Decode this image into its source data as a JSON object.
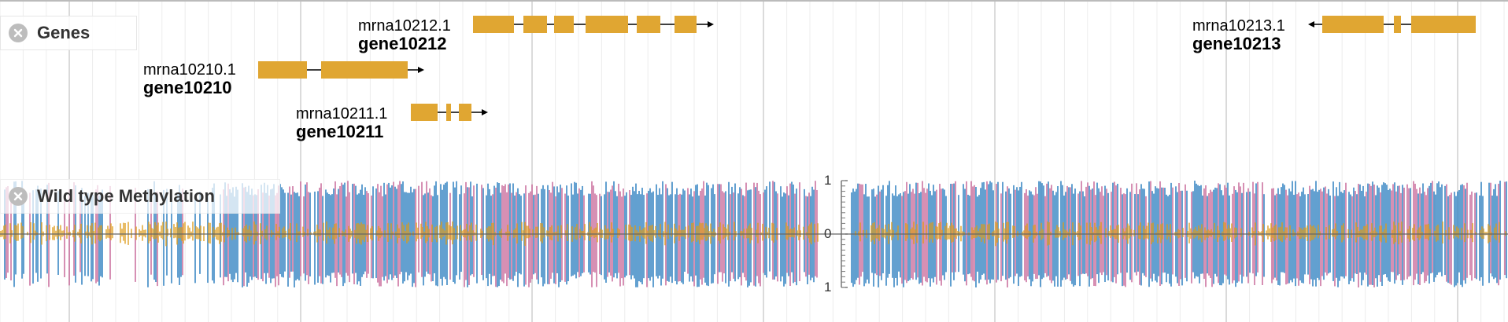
{
  "tracks": {
    "genes": {
      "title": "Genes",
      "close_icon": "close-circle-icon"
    },
    "methylation": {
      "title": "Wild type Methylation",
      "close_icon": "close-circle-icon"
    }
  },
  "colors": {
    "gene_block": "#e0a632",
    "cg": "#2f80c0",
    "chg": "#c86a9a",
    "chh": "#e0a632",
    "grid_major": "#d0d0d0",
    "grid_minor": "#ececec"
  },
  "genes": [
    {
      "mrna": "mrna10212.1",
      "name": "gene10212",
      "strand": "+"
    },
    {
      "mrna": "mrna10210.1",
      "name": "gene10210",
      "strand": "+"
    },
    {
      "mrna": "mrna10211.1",
      "name": "gene10211",
      "strand": "+"
    },
    {
      "mrna": "mrna10213.1",
      "name": "gene10213",
      "strand": "-"
    }
  ],
  "methylation_axis": {
    "top": "1",
    "middle": "0",
    "bottom": "1"
  }
}
